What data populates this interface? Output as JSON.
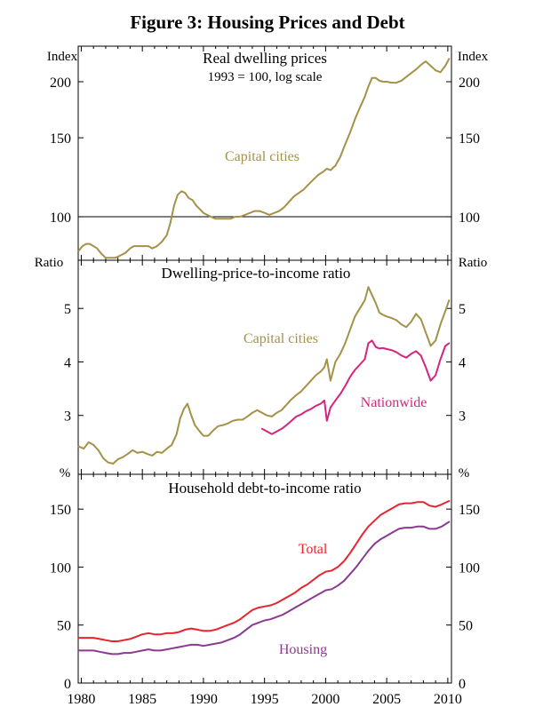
{
  "figure_title": "Figure 3: Housing Prices and Debt",
  "colors": {
    "capital_cities": "#a39248",
    "nationwide": "#d6247d",
    "total": "#e8252f",
    "housing": "#8b3a8f"
  },
  "x_ticks": [
    "1980",
    "1985",
    "1990",
    "1995",
    "2000",
    "2005",
    "2010"
  ],
  "chart_data": [
    {
      "type": "line",
      "title": "Real dwelling prices",
      "subtitle": "1993 = 100, log scale",
      "ylabel_left": "Index",
      "ylabel_right": "Index",
      "log_scale": true,
      "ylim": [
        80,
        240
      ],
      "y_ticks": [
        100,
        150,
        200
      ],
      "reference_line": 100,
      "xlim": [
        1979.75,
        2010.3
      ],
      "series": [
        {
          "name": "Capital cities",
          "color_key": "capital_cities",
          "x": [
            1979.8,
            1980.1,
            1980.4,
            1980.7,
            1981.0,
            1981.3,
            1981.6,
            1982.0,
            1982.4,
            1982.8,
            1983.2,
            1983.6,
            1984.0,
            1984.3,
            1984.6,
            1984.9,
            1985.2,
            1985.5,
            1985.8,
            1986.2,
            1986.6,
            1987.0,
            1987.3,
            1987.6,
            1987.9,
            1988.2,
            1988.5,
            1988.8,
            1989.1,
            1989.4,
            1989.7,
            1990.0,
            1990.3,
            1990.6,
            1991.0,
            1991.4,
            1991.8,
            1992.2,
            1992.6,
            1993.0,
            1993.4,
            1993.8,
            1994.2,
            1994.6,
            1995.0,
            1995.4,
            1995.8,
            1996.2,
            1996.6,
            1997.0,
            1997.4,
            1997.8,
            1998.2,
            1998.6,
            1999.0,
            1999.4,
            1999.8,
            2000.1,
            2000.4,
            2000.8,
            2001.2,
            2001.6,
            2002.0,
            2002.4,
            2002.8,
            2003.2,
            2003.5,
            2003.8,
            2004.1,
            2004.4,
            2004.7,
            2005.0,
            2005.4,
            2005.8,
            2006.2,
            2006.6,
            2007.0,
            2007.4,
            2007.8,
            2008.2,
            2008.6,
            2009.0,
            2009.4,
            2009.8,
            2010.1
          ],
          "values": [
            84,
            86,
            87,
            87,
            86,
            85,
            83,
            81,
            81,
            81,
            82,
            83,
            85,
            86,
            86,
            86,
            86,
            86,
            85,
            86,
            88,
            91,
            97,
            106,
            112,
            114,
            113,
            110,
            109,
            106,
            104,
            102,
            101,
            100,
            99,
            99,
            99,
            99,
            100,
            100,
            101,
            102,
            103,
            103,
            102,
            101,
            102,
            103,
            105,
            108,
            111,
            113,
            115,
            118,
            121,
            124,
            126,
            128,
            127,
            130,
            136,
            145,
            154,
            165,
            175,
            185,
            195,
            204,
            204,
            201,
            200,
            200,
            199,
            199,
            201,
            205,
            209,
            213,
            218,
            222,
            217,
            212,
            210,
            217,
            225
          ]
        }
      ]
    },
    {
      "type": "line",
      "title": "Dwelling-price-to-income ratio",
      "ylabel_left": "Ratio",
      "ylabel_right": "Ratio",
      "ylim": [
        1.9,
        5.9
      ],
      "y_ticks": [
        3,
        4,
        5
      ],
      "xlim": [
        1979.75,
        2010.3
      ],
      "series": [
        {
          "name": "Capital cities",
          "color_key": "capital_cities",
          "x": [
            1979.8,
            1980.2,
            1980.6,
            1981.0,
            1981.4,
            1981.8,
            1982.2,
            1982.6,
            1983.0,
            1983.4,
            1983.8,
            1984.2,
            1984.6,
            1985.0,
            1985.4,
            1985.8,
            1986.2,
            1986.6,
            1987.0,
            1987.4,
            1987.8,
            1988.1,
            1988.4,
            1988.7,
            1989.0,
            1989.3,
            1989.7,
            1990.0,
            1990.4,
            1990.8,
            1991.2,
            1991.6,
            1992.0,
            1992.4,
            1992.8,
            1993.2,
            1993.6,
            1994.0,
            1994.4,
            1994.8,
            1995.2,
            1995.6,
            1996.0,
            1996.4,
            1996.8,
            1997.2,
            1997.6,
            1998.0,
            1998.4,
            1998.8,
            1999.2,
            1999.6,
            1999.9,
            2000.1,
            2000.4,
            2000.8,
            2001.2,
            2001.6,
            2002.0,
            2002.4,
            2002.8,
            2003.2,
            2003.5,
            2003.8,
            2004.1,
            2004.4,
            2004.7,
            2005.0,
            2005.4,
            2005.8,
            2006.2,
            2006.6,
            2007.0,
            2007.4,
            2007.8,
            2008.2,
            2008.6,
            2009.0,
            2009.4,
            2009.8,
            2010.1
          ],
          "values": [
            2.42,
            2.38,
            2.5,
            2.45,
            2.35,
            2.2,
            2.12,
            2.1,
            2.18,
            2.22,
            2.28,
            2.35,
            2.3,
            2.32,
            2.28,
            2.25,
            2.32,
            2.3,
            2.38,
            2.45,
            2.65,
            2.95,
            3.12,
            3.22,
            3.0,
            2.82,
            2.7,
            2.62,
            2.62,
            2.72,
            2.8,
            2.82,
            2.85,
            2.9,
            2.92,
            2.92,
            2.98,
            3.05,
            3.1,
            3.05,
            3.0,
            2.98,
            3.05,
            3.1,
            3.2,
            3.3,
            3.38,
            3.45,
            3.55,
            3.65,
            3.75,
            3.82,
            3.9,
            4.05,
            3.65,
            4.0,
            4.15,
            4.35,
            4.6,
            4.85,
            5.0,
            5.15,
            5.4,
            5.25,
            5.1,
            4.92,
            4.88,
            4.85,
            4.82,
            4.78,
            4.7,
            4.65,
            4.75,
            4.9,
            4.8,
            4.55,
            4.3,
            4.4,
            4.7,
            4.95,
            5.15
          ]
        },
        {
          "name": "Nationwide",
          "color_key": "nationwide",
          "x": [
            1994.8,
            1995.2,
            1995.6,
            1996.0,
            1996.4,
            1996.8,
            1997.2,
            1997.6,
            1998.0,
            1998.4,
            1998.8,
            1999.2,
            1999.6,
            1999.9,
            2000.1,
            2000.4,
            2000.8,
            2001.2,
            2001.6,
            2002.0,
            2002.4,
            2002.8,
            2003.2,
            2003.5,
            2003.8,
            2004.1,
            2004.4,
            2004.7,
            2005.0,
            2005.4,
            2005.8,
            2006.2,
            2006.6,
            2007.0,
            2007.4,
            2007.8,
            2008.2,
            2008.6,
            2009.0,
            2009.4,
            2009.8,
            2010.1
          ],
          "values": [
            2.75,
            2.7,
            2.65,
            2.7,
            2.75,
            2.82,
            2.9,
            2.98,
            3.02,
            3.08,
            3.12,
            3.18,
            3.22,
            3.28,
            2.9,
            3.15,
            3.28,
            3.4,
            3.55,
            3.72,
            3.85,
            3.95,
            4.05,
            4.35,
            4.4,
            4.28,
            4.25,
            4.26,
            4.24,
            4.22,
            4.18,
            4.12,
            4.08,
            4.15,
            4.2,
            4.12,
            3.9,
            3.65,
            3.75,
            4.05,
            4.3,
            4.35
          ]
        }
      ]
    },
    {
      "type": "line",
      "title": "Household debt-to-income ratio",
      "ylabel_left": "%",
      "ylabel_right": "%",
      "ylim": [
        0,
        180
      ],
      "y_ticks": [
        0,
        50,
        100,
        150
      ],
      "xlim": [
        1979.75,
        2010.3
      ],
      "x_ticks": [
        1980,
        1985,
        1990,
        1995,
        2000,
        2005,
        2010
      ],
      "series": [
        {
          "name": "Total",
          "color_key": "total",
          "x": [
            1979.8,
            1980.5,
            1981.0,
            1981.5,
            1982.0,
            1982.5,
            1983.0,
            1983.5,
            1984.0,
            1984.5,
            1985.0,
            1985.5,
            1986.0,
            1986.5,
            1987.0,
            1987.5,
            1988.0,
            1988.5,
            1989.0,
            1989.5,
            1990.0,
            1990.5,
            1991.0,
            1991.5,
            1992.0,
            1992.5,
            1993.0,
            1993.5,
            1994.0,
            1994.5,
            1995.0,
            1995.5,
            1996.0,
            1996.5,
            1997.0,
            1997.5,
            1998.0,
            1998.5,
            1999.0,
            1999.5,
            2000.0,
            2000.5,
            2001.0,
            2001.5,
            2002.0,
            2002.5,
            2003.0,
            2003.5,
            2004.0,
            2004.5,
            2005.0,
            2005.5,
            2006.0,
            2006.5,
            2007.0,
            2007.5,
            2008.0,
            2008.5,
            2009.0,
            2009.5,
            2010.1
          ],
          "values": [
            39,
            39,
            39,
            38,
            37,
            36,
            36,
            37,
            38,
            40,
            42,
            43,
            42,
            42,
            43,
            43,
            44,
            46,
            47,
            46,
            45,
            45,
            46,
            48,
            50,
            52,
            55,
            59,
            63,
            65,
            66,
            67,
            69,
            72,
            75,
            78,
            82,
            85,
            89,
            93,
            96,
            97,
            100,
            105,
            112,
            120,
            128,
            135,
            140,
            145,
            148,
            151,
            154,
            155,
            155,
            156,
            156,
            153,
            152,
            154,
            157
          ]
        },
        {
          "name": "Housing",
          "color_key": "housing",
          "x": [
            1979.8,
            1980.5,
            1981.0,
            1981.5,
            1982.0,
            1982.5,
            1983.0,
            1983.5,
            1984.0,
            1984.5,
            1985.0,
            1985.5,
            1986.0,
            1986.5,
            1987.0,
            1987.5,
            1988.0,
            1988.5,
            1989.0,
            1989.5,
            1990.0,
            1990.5,
            1991.0,
            1991.5,
            1992.0,
            1992.5,
            1993.0,
            1993.5,
            1994.0,
            1994.5,
            1995.0,
            1995.5,
            1996.0,
            1996.5,
            1997.0,
            1997.5,
            1998.0,
            1998.5,
            1999.0,
            1999.5,
            2000.0,
            2000.5,
            2001.0,
            2001.5,
            2002.0,
            2002.5,
            2003.0,
            2003.5,
            2004.0,
            2004.5,
            2005.0,
            2005.5,
            2006.0,
            2006.5,
            2007.0,
            2007.5,
            2008.0,
            2008.5,
            2009.0,
            2009.5,
            2010.1
          ],
          "values": [
            28,
            28,
            28,
            27,
            26,
            25,
            25,
            26,
            26,
            27,
            28,
            29,
            28,
            28,
            29,
            30,
            31,
            32,
            33,
            33,
            32,
            33,
            34,
            35,
            37,
            39,
            42,
            46,
            50,
            52,
            54,
            55,
            57,
            59,
            62,
            65,
            68,
            71,
            74,
            77,
            80,
            81,
            84,
            88,
            94,
            100,
            107,
            114,
            120,
            124,
            127,
            130,
            133,
            134,
            134,
            135,
            135,
            133,
            133,
            135,
            139
          ]
        }
      ]
    }
  ],
  "series_labels": {
    "panel1_capital": "Capital cities",
    "panel2_capital": "Capital cities",
    "panel2_nationwide": "Nationwide",
    "panel3_total": "Total",
    "panel3_housing": "Housing"
  }
}
